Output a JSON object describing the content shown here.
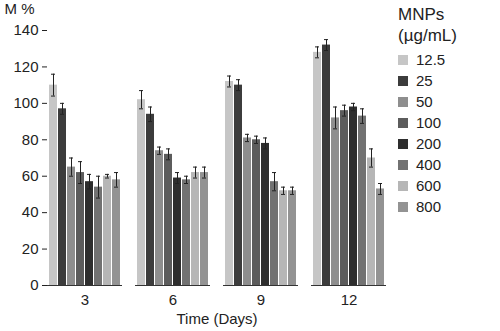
{
  "chart_data": {
    "type": "bar",
    "y_label": "M %",
    "x_label": "Time (Days)",
    "legend_title": "MNPs (µg/mL)",
    "legend": "right",
    "categories": [
      "3",
      "6",
      "9",
      "12"
    ],
    "series": [
      {
        "name": "12.5",
        "color": "#c6c6c6",
        "values": [
          110,
          102,
          112,
          128
        ],
        "errors": [
          6,
          5,
          3,
          3
        ]
      },
      {
        "name": "25",
        "color": "#3c3c3c",
        "values": [
          97,
          94,
          110,
          132
        ],
        "errors": [
          3,
          4,
          3,
          3
        ]
      },
      {
        "name": "50",
        "color": "#8e8e8e",
        "values": [
          65,
          74,
          81,
          92
        ],
        "errors": [
          5,
          2,
          2,
          6
        ]
      },
      {
        "name": "100",
        "color": "#5c5c5c",
        "values": [
          62,
          72,
          80,
          96
        ],
        "errors": [
          6,
          3,
          2,
          3
        ]
      },
      {
        "name": "200",
        "color": "#2e2e2e",
        "values": [
          57,
          59,
          78,
          98
        ],
        "errors": [
          4,
          3,
          3,
          2
        ]
      },
      {
        "name": "400",
        "color": "#727272",
        "values": [
          54,
          58,
          57,
          93
        ],
        "errors": [
          6,
          2,
          5,
          4
        ]
      },
      {
        "name": "600",
        "color": "#b6b6b6",
        "values": [
          60,
          62,
          52,
          70
        ],
        "errors": [
          1,
          3,
          2,
          5
        ]
      },
      {
        "name": "800",
        "color": "#939393",
        "values": [
          58,
          62,
          52,
          53
        ],
        "errors": [
          4,
          3,
          2,
          3
        ]
      }
    ],
    "ylim": [
      0,
      140
    ],
    "yticks": [
      0,
      20,
      40,
      60,
      80,
      100,
      120,
      140
    ],
    "grid": false
  }
}
